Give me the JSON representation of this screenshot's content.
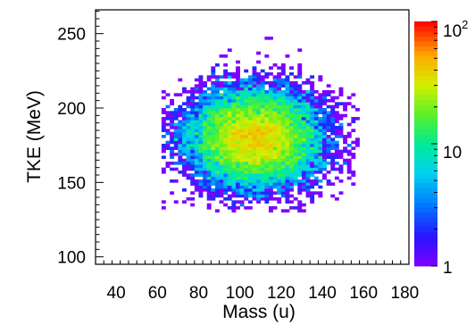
{
  "chart_data": {
    "type": "heatmap",
    "xlabel": "Mass (u)",
    "ylabel": "TKE (MeV)",
    "xlim": [
      30,
      182
    ],
    "ylim": [
      95,
      266
    ],
    "x_ticks": [
      40,
      60,
      80,
      100,
      120,
      140,
      160,
      180
    ],
    "x_tick_labels": [
      "40",
      "60",
      "80",
      "100",
      "120",
      "140",
      "160",
      "180"
    ],
    "y_ticks": [
      100,
      150,
      200,
      250
    ],
    "y_tick_labels": [
      "100",
      "150",
      "200",
      "250"
    ],
    "color_scale": {
      "type": "log",
      "range": [
        1,
        100
      ],
      "labels": [
        {
          "value": 1,
          "text": "1"
        },
        {
          "value": 10,
          "text": "10"
        },
        {
          "value": 100,
          "base": "10",
          "exp": "2"
        }
      ]
    },
    "grid": false,
    "distribution": {
      "shape": "2d-gaussian",
      "mean_mass": 107,
      "sd_mass": 16,
      "mean_tke": 180,
      "sd_tke": 16,
      "peak_counts": 40,
      "mass_range": [
        62,
        157
      ],
      "tke_range": [
        130,
        258
      ]
    }
  }
}
